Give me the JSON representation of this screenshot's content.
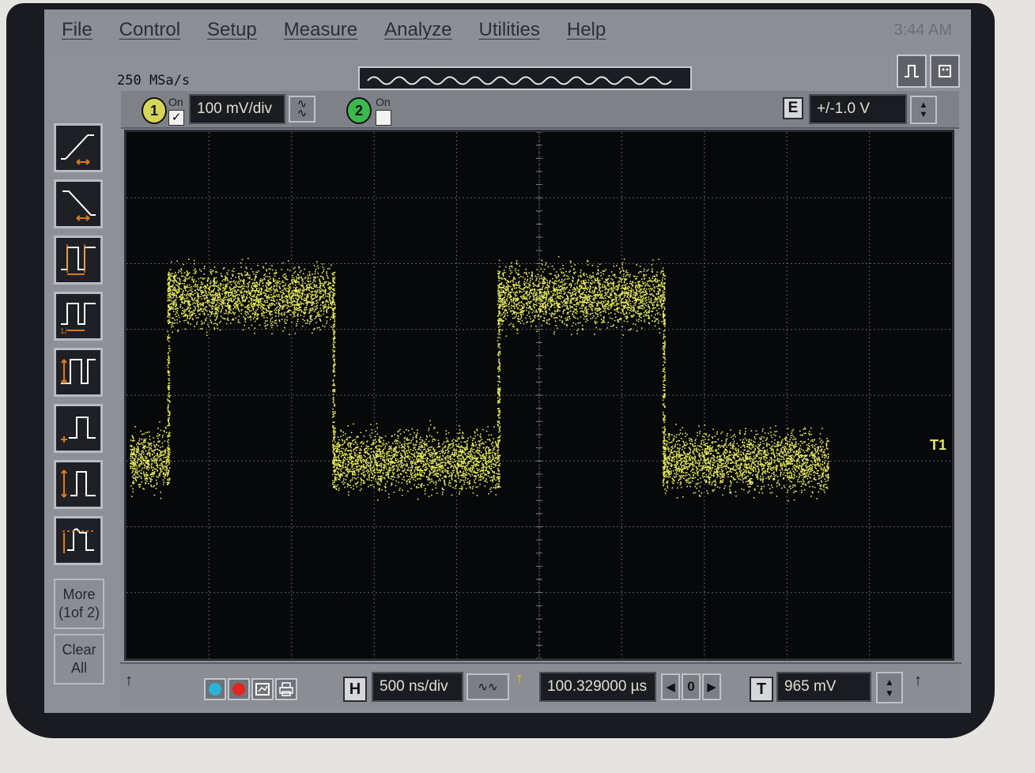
{
  "menu": {
    "items": [
      "File",
      "Control",
      "Setup",
      "Measure",
      "Analyze",
      "Utilities",
      "Help"
    ],
    "clock": "3:44 AM"
  },
  "header": {
    "sample_rate": "250 MSa/s"
  },
  "channel1": {
    "number": "1",
    "on_label": "On",
    "scale": "100 mV/div",
    "enabled": true
  },
  "channel2": {
    "number": "2",
    "on_label": "On",
    "enabled": false
  },
  "external": {
    "badge": "E",
    "range": "+/-1.0 V"
  },
  "left_toolbar": {
    "more_label": "More",
    "more_page": "(1of 2)",
    "clear_label": "Clear",
    "clear_sub": "All"
  },
  "bottom_bar": {
    "horizontal_badge": "H",
    "timebase": "500 ns/div",
    "delay": "100.329000 µs",
    "delay_step": "0",
    "trigger_badge": "T",
    "trigger_level": "965 mV"
  },
  "trigger_marker": "T1",
  "colors": {
    "trace": "#e8ea5c",
    "screen_bg": "#070809",
    "chrome": "#8d9097",
    "measure_accent": "#e07818"
  },
  "waveform": {
    "type": "square",
    "high_divisions": 1.6,
    "low_divisions": -0.9,
    "transitions_div": [
      0.5,
      2.5,
      4.5,
      6.5,
      8.5
    ],
    "center_offset": "0"
  }
}
